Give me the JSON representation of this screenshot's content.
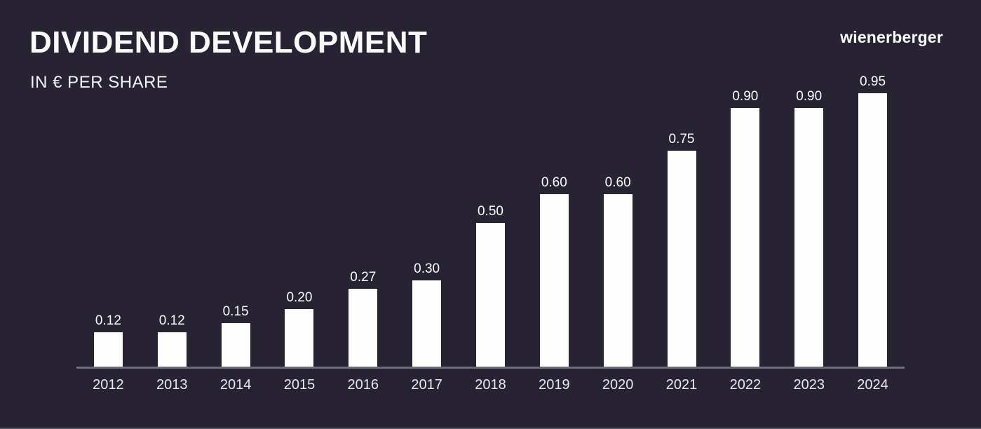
{
  "header": {
    "title": "DIVIDEND DEVELOPMENT",
    "subtitle": "IN € PER SHARE",
    "brand": "wienerberger"
  },
  "chart_data": {
    "type": "bar",
    "title": "DIVIDEND DEVELOPMENT",
    "subtitle": "IN € PER SHARE",
    "unit": "€ per share",
    "categories": [
      "2012",
      "2013",
      "2014",
      "2015",
      "2016",
      "2017",
      "2018",
      "2019",
      "2020",
      "2021",
      "2022",
      "2023",
      "2024"
    ],
    "values": [
      0.12,
      0.12,
      0.15,
      0.2,
      0.27,
      0.3,
      0.5,
      0.6,
      0.6,
      0.75,
      0.9,
      0.9,
      0.95
    ],
    "value_decimals": 2,
    "ylim": [
      0,
      1.0
    ],
    "grid": false,
    "legend": false,
    "bar_color": "#fdfdfd",
    "background_color": "#272332",
    "axis_line_color": "#6c6b76",
    "label_color": "#fcfcfd",
    "tick_color": "#e9e8ee"
  }
}
